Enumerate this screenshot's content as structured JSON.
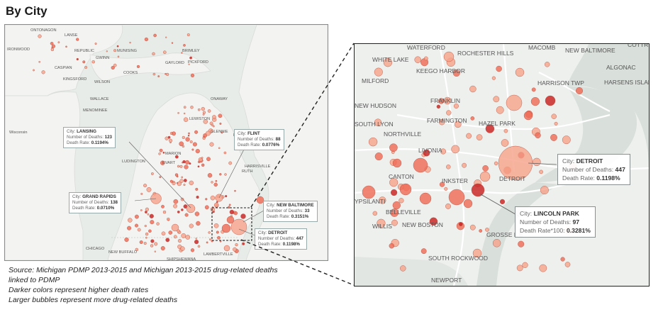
{
  "title": "By City",
  "source_lines": [
    "Source: Michigan PDMP 2013-2015 and Michigan 2013-2015 drug-related deaths",
    "linked to PDMP",
    "Darker colors represent higher death rates",
    "Larger bubbles represent more drug-related deaths"
  ],
  "colors": {
    "water": "#e8ece8",
    "land": "#f3f3f1",
    "bubble_light": "#f6a38b",
    "bubble_mid": "#ef6b57",
    "bubble_dark": "#c82020",
    "bubble_stroke": "#b54a3a"
  },
  "left_map": {
    "labels": [
      "ONTONAGON",
      "LANSE",
      "IRONWOOD",
      "REPUBLIC",
      "MUNISING",
      "BRIMLEY",
      "CASPIAN",
      "GWINN",
      "KINGSFORD",
      "COOKS",
      "GAYLORD",
      "WILSON",
      "WALLACE",
      "MENOMINEE",
      "ONAWAY",
      "Wisconsin",
      "LEWISTON",
      "GLENNIE",
      "LUDINGTON",
      "MARION",
      "EVART",
      "HARRISVILLE",
      "CHICAGO",
      "NEW BUFFALO",
      "LAMBERTVILLE",
      "SHIPSHEWANA",
      "PICKFORD",
      "RUTH",
      "FLINT"
    ],
    "tooltips": [
      {
        "name": "tip-lansing",
        "lines": [
          [
            "City: ",
            "LANSING"
          ],
          [
            "Number of Deaths: ",
            "123"
          ],
          [
            "Death Rate: ",
            "0.1194%"
          ]
        ]
      },
      {
        "name": "tip-flint",
        "lines": [
          [
            "City: ",
            "FLINT"
          ],
          [
            "Number of Deaths: ",
            "88"
          ],
          [
            "Death Rate: ",
            "0.0776%"
          ]
        ]
      },
      {
        "name": "tip-grand-rapids",
        "lines": [
          [
            "City: ",
            "GRAND RAPIDS"
          ],
          [
            "Number of Deaths: ",
            "138"
          ],
          [
            "Death Rate: ",
            "0.0710%"
          ]
        ]
      },
      {
        "name": "tip-new-baltimore",
        "lines": [
          [
            "City: ",
            "NEW BALTIMORE"
          ],
          [
            "Number of Deaths: ",
            "33"
          ],
          [
            "Death Rate: ",
            "0.3151%"
          ]
        ]
      },
      {
        "name": "tip-detroit-small",
        "lines": [
          [
            "City: ",
            "DETROIT"
          ],
          [
            "Number of Deaths: ",
            "447"
          ],
          [
            "Death Rate: ",
            "0.1198%"
          ]
        ]
      }
    ]
  },
  "right_map": {
    "labels": [
      "WATERFORD",
      "ROCHESTER HILLS",
      "MACOMB",
      "NEW BALTIMORE",
      "COTTRELL",
      "WHITE LAKE",
      "KEEGO HARBOR",
      "ALGONAC",
      "MILFORD",
      "HARRISON TWP",
      "HARSENS ISLAND",
      "FRANKLIN",
      "NEW HUDSON",
      "FARMINGTON",
      "HAZEL PARK",
      "SOUTH LYON",
      "NORTHVILLE",
      "LIVONIA",
      "CANTON",
      "INKSTER",
      "DETROIT",
      "YPSILANTI",
      "BELLEVILLE",
      "WILLIS",
      "NEW BOSTON",
      "GROSSE ILE",
      "SOUTH ROCKWOOD",
      "NEWPORT"
    ],
    "tooltips": [
      {
        "name": "tip-detroit",
        "lines": [
          [
            "City: ",
            "DETROIT"
          ],
          [
            "Number of Deaths: ",
            "447"
          ],
          [
            "Death Rate: ",
            "0.1198%"
          ]
        ]
      },
      {
        "name": "tip-lincoln-park",
        "lines": [
          [
            "City: ",
            "LINCOLN PARK"
          ],
          [
            "Number of Deaths: ",
            "97"
          ],
          [
            "Death Rate*100: ",
            "0.3281%"
          ]
        ]
      }
    ]
  }
}
